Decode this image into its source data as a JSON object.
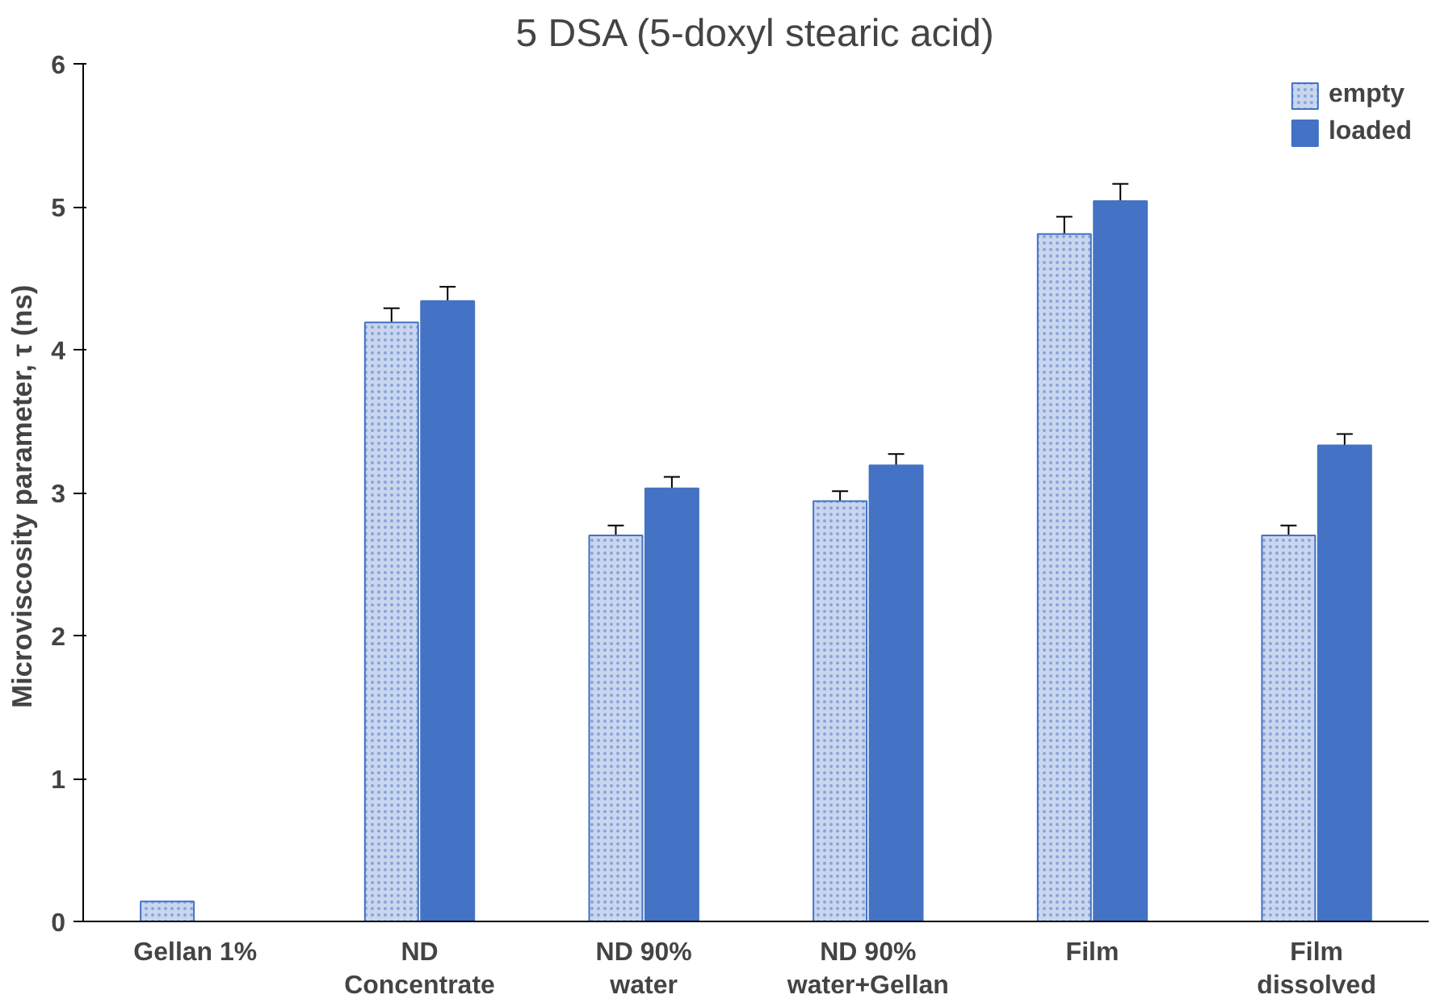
{
  "chart_data": {
    "type": "bar",
    "title": "5 DSA (5-doxyl stearic acid)",
    "ylabel": "Microviscosity  parameter, τ (ns)",
    "categories": [
      "Gellan 1%",
      "ND\nConcentrate",
      "ND 90%\nwater",
      "ND 90%\nwater+Gellan",
      "Film",
      "Film\ndissolved"
    ],
    "series": [
      {
        "name": "empty",
        "color": "#c9d6ee",
        "values": [
          0.14,
          4.19,
          2.7,
          2.94,
          4.81,
          2.7
        ],
        "errors": [
          null,
          0.1,
          0.07,
          0.07,
          0.12,
          0.07
        ]
      },
      {
        "name": "loaded",
        "color": "#4472c4",
        "values": [
          null,
          4.34,
          3.03,
          3.19,
          5.04,
          3.33
        ],
        "errors": [
          null,
          0.1,
          0.08,
          0.08,
          0.12,
          0.08
        ]
      }
    ],
    "ylim": [
      0,
      6
    ],
    "yticks": [
      0,
      1,
      2,
      3,
      4,
      5,
      6
    ],
    "grid": false,
    "legend": "top right"
  }
}
